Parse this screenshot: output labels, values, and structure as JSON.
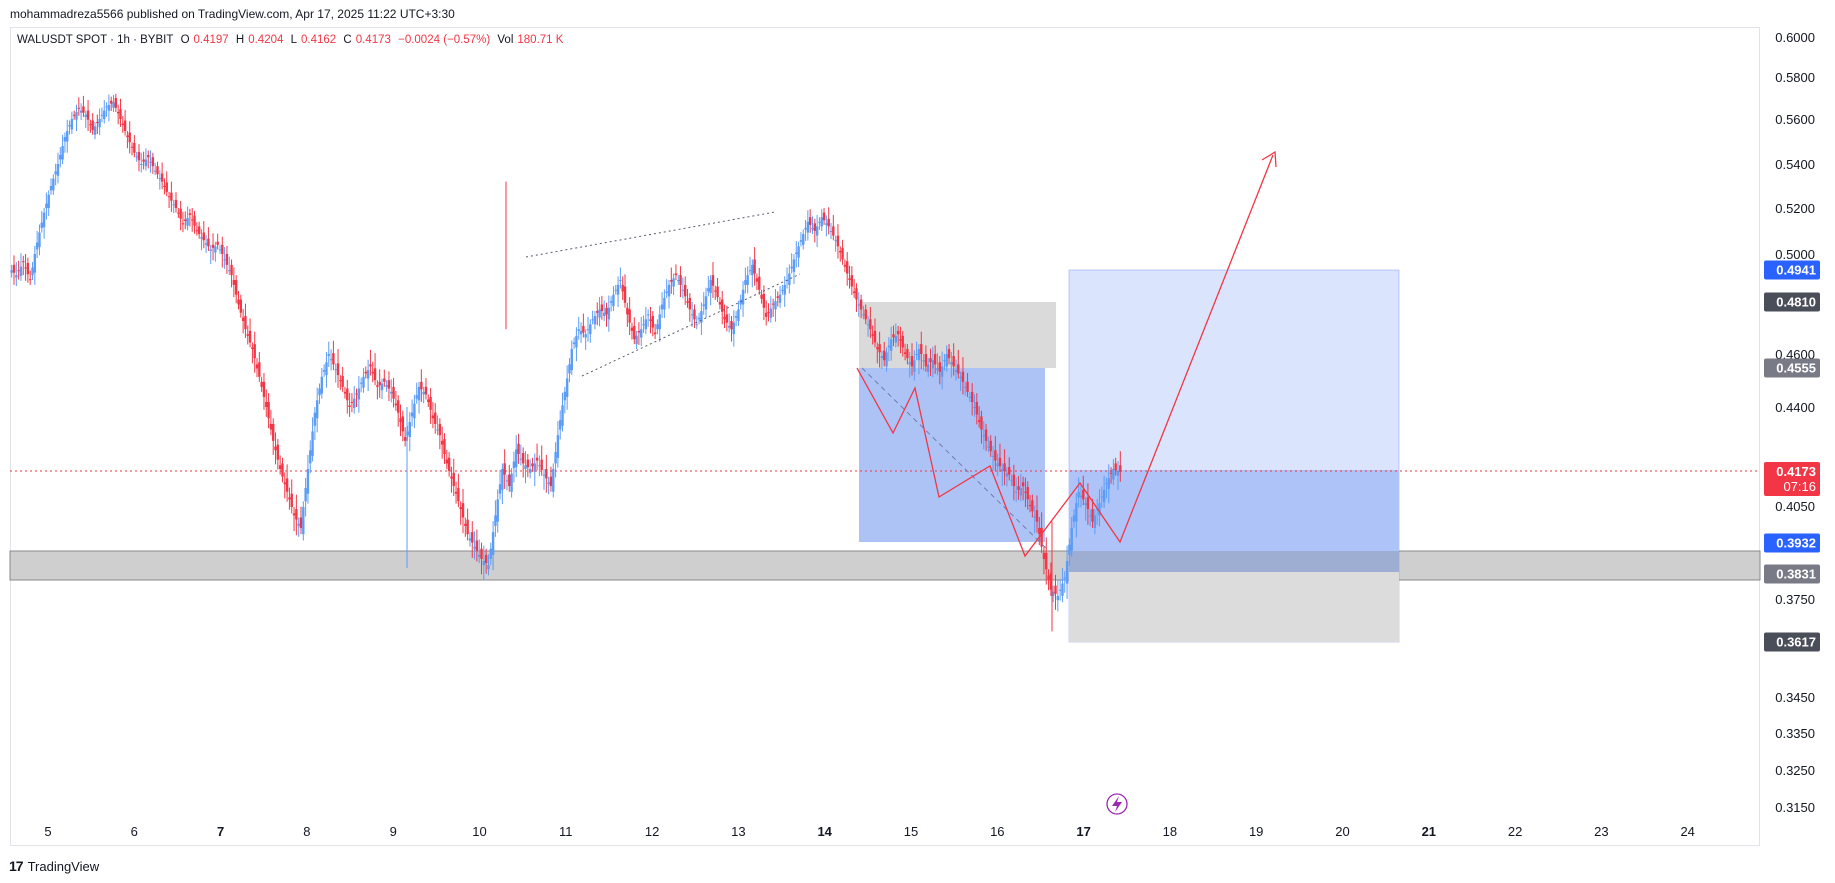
{
  "header": {
    "publisher": "mohammadreza5566 published on TradingView.com, Apr 17, 2025 11:22 UTC+3:30"
  },
  "legend": {
    "symbol": "WALUSDT SPOT · 1h · BYBIT",
    "o_label": "O",
    "o_value": "0.4197",
    "h_label": "H",
    "h_value": "0.4204",
    "l_label": "L",
    "l_value": "0.4162",
    "c_label": "C",
    "c_value": "0.4173",
    "change": "−0.0024 (−0.57%)",
    "vol_label": "Vol",
    "vol_value": "180.71 K"
  },
  "footer": {
    "logo": "17",
    "brand": "TradingView"
  },
  "colors": {
    "up": "#5b9cf6",
    "down": "#f23645",
    "blue_zone": "#2962ff",
    "gray_zone": "#9e9e9e",
    "price_line": "#f23645",
    "drawing": "#f23645"
  },
  "chart_data": {
    "type": "candlestick",
    "symbol": "WALUSDT",
    "interval": "1h",
    "yticks": [
      "0.6000",
      "0.5800",
      "0.5600",
      "0.5400",
      "0.5200",
      "0.5000",
      "0.4600",
      "0.4400",
      "0.4050",
      "0.3750",
      "0.3450",
      "0.3350",
      "0.3250",
      "0.3150"
    ],
    "xticks": [
      {
        "label": "5",
        "bold": false
      },
      {
        "label": "6",
        "bold": false
      },
      {
        "label": "7",
        "bold": true
      },
      {
        "label": "8",
        "bold": false
      },
      {
        "label": "9",
        "bold": false
      },
      {
        "label": "10",
        "bold": false
      },
      {
        "label": "11",
        "bold": false
      },
      {
        "label": "12",
        "bold": false
      },
      {
        "label": "13",
        "bold": false
      },
      {
        "label": "14",
        "bold": true
      },
      {
        "label": "15",
        "bold": false
      },
      {
        "label": "16",
        "bold": false
      },
      {
        "label": "17",
        "bold": true
      },
      {
        "label": "18",
        "bold": false
      },
      {
        "label": "19",
        "bold": false
      },
      {
        "label": "20",
        "bold": false
      },
      {
        "label": "21",
        "bold": true
      },
      {
        "label": "22",
        "bold": false
      },
      {
        "label": "23",
        "bold": false
      },
      {
        "label": "24",
        "bold": false
      }
    ],
    "price_labels": [
      {
        "value": "0.4941",
        "style": "blue"
      },
      {
        "value": "0.4810",
        "style": "dark"
      },
      {
        "value": "0.4555",
        "style": "gray"
      },
      {
        "value": "0.4173",
        "sub": "07:16",
        "style": "red"
      },
      {
        "value": "0.3932",
        "style": "blue"
      },
      {
        "value": "0.3831",
        "style": "gray"
      },
      {
        "value": "0.3617",
        "style": "dark"
      }
    ],
    "last_price": 0.4173,
    "support_zone": [
      0.38,
      0.388
    ],
    "long_position": {
      "entry": 0.4173,
      "target": 0.4941,
      "stop": 0.3617,
      "from_day": 17.0,
      "to_day": 20.8
    },
    "buy_box": {
      "top": 0.4555,
      "bottom": 0.3932
    },
    "supply_box": {
      "top": 0.481,
      "bottom": 0.4555
    },
    "candles_closes": [
      0.492,
      0.497,
      0.49,
      0.505,
      0.518,
      0.53,
      0.54,
      0.552,
      0.56,
      0.565,
      0.562,
      0.555,
      0.56,
      0.566,
      0.568,
      0.56,
      0.552,
      0.545,
      0.54,
      0.543,
      0.537,
      0.532,
      0.525,
      0.52,
      0.513,
      0.517,
      0.51,
      0.506,
      0.502,
      0.504,
      0.498,
      0.492,
      0.48,
      0.47,
      0.462,
      0.452,
      0.44,
      0.428,
      0.418,
      0.41,
      0.402,
      0.398,
      0.418,
      0.438,
      0.452,
      0.46,
      0.455,
      0.448,
      0.44,
      0.445,
      0.452,
      0.456,
      0.448,
      0.45,
      0.446,
      0.438,
      0.428,
      0.438,
      0.448,
      0.445,
      0.436,
      0.43,
      0.42,
      0.412,
      0.404,
      0.396,
      0.392,
      0.388,
      0.386,
      0.402,
      0.418,
      0.412,
      0.425,
      0.42,
      0.418,
      0.421,
      0.416,
      0.412,
      0.43,
      0.446,
      0.462,
      0.47,
      0.468,
      0.474,
      0.478,
      0.476,
      0.484,
      0.49,
      0.476,
      0.466,
      0.47,
      0.476,
      0.468,
      0.48,
      0.488,
      0.492,
      0.486,
      0.478,
      0.472,
      0.48,
      0.49,
      0.483,
      0.474,
      0.47,
      0.478,
      0.49,
      0.496,
      0.486,
      0.475,
      0.48,
      0.484,
      0.49,
      0.498,
      0.506,
      0.514,
      0.51,
      0.516,
      0.512,
      0.506,
      0.498,
      0.49,
      0.482,
      0.476,
      0.47,
      0.462,
      0.458,
      0.466,
      0.468,
      0.46,
      0.456,
      0.462,
      0.456,
      0.458,
      0.454,
      0.46,
      0.456,
      0.452,
      0.446,
      0.44,
      0.432,
      0.426,
      0.421,
      0.418,
      0.416,
      0.41,
      0.412,
      0.405,
      0.4,
      0.388,
      0.378,
      0.376,
      0.382,
      0.398,
      0.41,
      0.406,
      0.4,
      0.406,
      0.413,
      0.418,
      0.417
    ]
  }
}
